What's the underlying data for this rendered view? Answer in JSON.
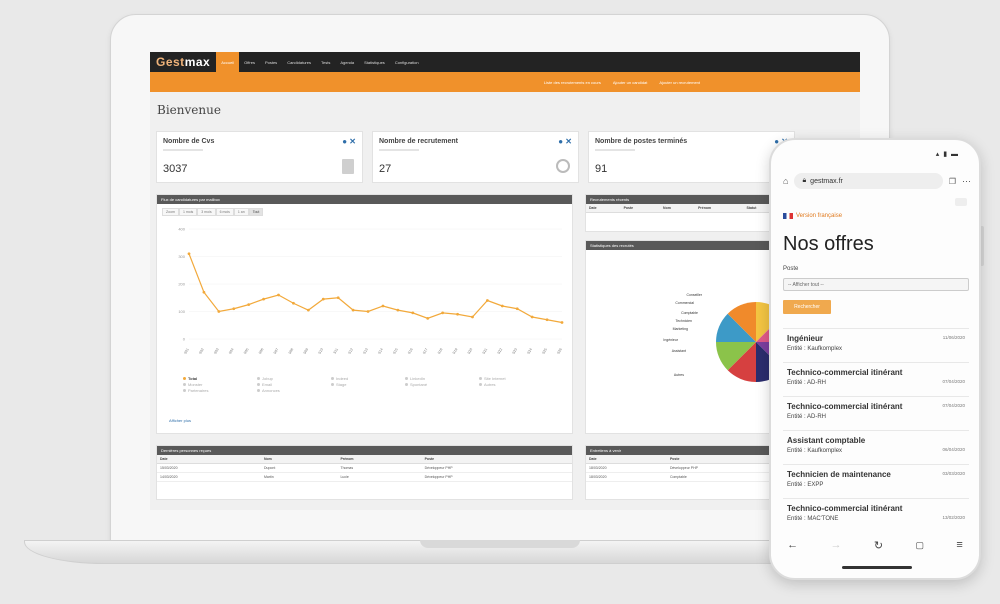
{
  "app": {
    "logo_part1": "Gest",
    "logo_part2": "max"
  },
  "nav": [
    {
      "label": "Accueil",
      "active": true
    },
    {
      "label": "Offres",
      "active": false
    },
    {
      "label": "Postes",
      "active": false
    },
    {
      "label": "Candidatures",
      "active": false
    },
    {
      "label": "Tests",
      "active": false
    },
    {
      "label": "Agenda",
      "active": false
    },
    {
      "label": "Statistiques",
      "active": false
    },
    {
      "label": "Configuration",
      "active": false
    }
  ],
  "subnav": [
    {
      "label": "Liste des recrutements en cours"
    },
    {
      "label": "Ajouter un candidat"
    },
    {
      "label": "Ajouter un recrutement"
    }
  ],
  "page_title": "Bienvenue",
  "cards": [
    {
      "title": "Nombre de Cvs",
      "value": "3037",
      "icon": "document-icon"
    },
    {
      "title": "Nombre de recrutement",
      "value": "27",
      "icon": "clock-icon"
    },
    {
      "title": "Nombre de postes terminés",
      "value": "91",
      "icon": "clock-icon"
    }
  ],
  "chart_panel": {
    "title": "Flux de candidatures par mailbox",
    "tabs": [
      "Zoom",
      "1 mois",
      "3 mois",
      "6 mois",
      "1 an",
      "Tout"
    ],
    "legend": [
      {
        "label": "Total",
        "on": true
      },
      {
        "label": "Jobup",
        "on": false
      },
      {
        "label": "Indeed",
        "on": false
      },
      {
        "label": "LinkedIn",
        "on": false
      },
      {
        "label": "Site Internet",
        "on": false
      },
      {
        "label": "Monster",
        "on": false
      },
      {
        "label": "Email",
        "on": false
      },
      {
        "label": "Stage",
        "on": false
      },
      {
        "label": "Spontané",
        "on": false
      },
      {
        "label": "Autres",
        "on": false
      },
      {
        "label": "Partenaires",
        "on": false
      },
      {
        "label": "Annonces",
        "on": false
      }
    ],
    "link": "Afficher plus"
  },
  "chart_data": {
    "type": "line",
    "x": [
      "S01",
      "S02",
      "S03",
      "S04",
      "S05",
      "S06",
      "S07",
      "S08",
      "S09",
      "S10",
      "S11",
      "S12",
      "S13",
      "S14",
      "S15",
      "S16",
      "S17",
      "S18",
      "S19",
      "S20",
      "S21",
      "S22",
      "S23",
      "S24",
      "S25",
      "S26"
    ],
    "series": [
      {
        "name": "Total",
        "values": [
          310,
          170,
          100,
          110,
          125,
          145,
          160,
          130,
          105,
          145,
          150,
          105,
          100,
          120,
          105,
          95,
          75,
          95,
          90,
          80,
          140,
          120,
          110,
          80,
          70,
          60
        ]
      }
    ],
    "ylim": [
      0,
      400
    ],
    "yticks": [
      0,
      100,
      200,
      300,
      400
    ],
    "color": "#f2a93b"
  },
  "recruit_panel": {
    "title": "Recrutements récents",
    "columns": [
      "Date",
      "Poste",
      "Nom",
      "Prénom",
      "Statut"
    ]
  },
  "pie_panel": {
    "title": "Statistiques des recrutés",
    "labels": [
      "Conseiller",
      "Commercial",
      "Comptable",
      "Technicien",
      "Marketing",
      "Ingénieur",
      "Assistant",
      "Autres"
    ],
    "colors": [
      "#f4c542",
      "#e05a8a",
      "#7c3fa0",
      "#2b2d6e",
      "#d64040",
      "#8bc34a",
      "#3d9ac7",
      "#f08a2b"
    ]
  },
  "persons_panel": {
    "title": "Dernières personnes reçues",
    "columns": [
      "Date",
      "Nom",
      "Prénom",
      "Poste"
    ],
    "rows": [
      [
        "15/03/2020",
        "Dupont",
        "Thomas",
        "Développeur PHP"
      ],
      [
        "14/03/2020",
        "Martin",
        "Lucie",
        "Développeur PHP"
      ]
    ]
  },
  "events_panel": {
    "title": "Entretiens à venir",
    "columns": [
      "Date",
      "Poste"
    ],
    "rows": [
      [
        "18/03/2020",
        "Développeur PHP"
      ],
      [
        "18/03/2020",
        "Comptable"
      ]
    ]
  },
  "phone": {
    "url": "gestmax.fr",
    "lang": "Version française",
    "title": "Nos offres",
    "filter_label": "Poste",
    "filter_value": "-- Afficher tout --",
    "filter_button": "Rechercher",
    "offers": [
      {
        "title": "Ingénieur",
        "meta": "Entité : Kaufkomplex",
        "date": "11/06/2020"
      },
      {
        "title": "Technico-commercial itinérant",
        "meta": "Entité : AD-RH",
        "date": "07/04/2020"
      },
      {
        "title": "Technico-commercial itinérant",
        "meta": "Entité : AD-RH",
        "date": "07/04/2020"
      },
      {
        "title": "Assistant comptable",
        "meta": "Entité : Kaufkomplex",
        "date": "06/04/2020"
      },
      {
        "title": "Technicien de maintenance",
        "meta": "Entité : EXPP",
        "date": "03/03/2020"
      },
      {
        "title": "Technico-commercial itinérant",
        "meta": "Entité : MAC'TONE",
        "date": "13/02/2020"
      }
    ]
  }
}
